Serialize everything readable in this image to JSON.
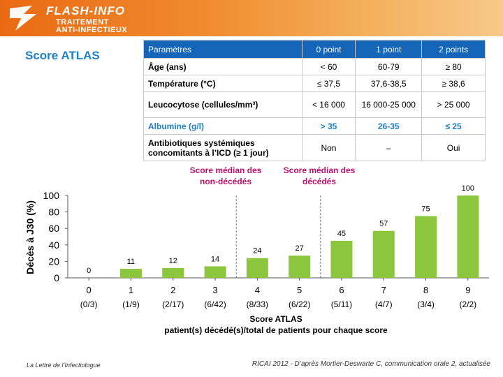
{
  "header": {
    "logo_title": "FLASH-INFO",
    "logo_line1": "TRAITEMENT",
    "logo_line2": "ANTI-INFECTIEUX"
  },
  "page_title": "Score ATLAS",
  "table": {
    "headers": [
      "Paramètres",
      "0 point",
      "1 point",
      "2 points"
    ],
    "rows": [
      {
        "param": "Âge (ans)",
        "v0": "< 60",
        "v1": "60-79",
        "v2": "≥ 80"
      },
      {
        "param": "Température (°C)",
        "v0": "≤ 37,5",
        "v1": "37,6-38,5",
        "v2": "≥ 38,6"
      },
      {
        "param": "Leucocytose (cellules/mm³)",
        "v0": "< 16 000",
        "v1": "16 000-25 000",
        "v2": "> 25 000"
      },
      {
        "param": "Albumine (g/l)",
        "v0": "> 35",
        "v1": "26-35",
        "v2": "≤ 25"
      },
      {
        "param": "Antibiotiques systémiques concomitants à l’ICD (≥ 1 jour)",
        "v0": "Non",
        "v1": "–",
        "v2": "Oui"
      }
    ]
  },
  "medians": {
    "left": "Score médian des non-décédés",
    "right": "Score médian des décédés"
  },
  "chart_data": {
    "type": "bar",
    "categories": [
      "0",
      "1",
      "2",
      "3",
      "4",
      "5",
      "6",
      "7",
      "8",
      "9"
    ],
    "sublabels": [
      "(0/3)",
      "(1/9)",
      "(2/17)",
      "(6/42)",
      "(8/33)",
      "(6/22)",
      "(5/11)",
      "(4/7)",
      "(3/4)",
      "(2/2)"
    ],
    "values": [
      0,
      11,
      12,
      14,
      24,
      27,
      45,
      57,
      75,
      100
    ],
    "ylim": [
      0,
      100
    ],
    "yticks": [
      0,
      20,
      40,
      60,
      80,
      100
    ],
    "ylabel": "Décès à J30 (%)",
    "xlabel": "Score ATLAS",
    "xlabel2": "patient(s) décédé(s)/total de patients pour chaque score",
    "bar_color": "#8cc63f",
    "median_lines_after": [
      3.5,
      5.5
    ]
  },
  "footer": {
    "left": "La Lettre de l’Infectiologue",
    "right": "RICAI 2012 - D’après Mortier-Deswarte C, communication orale 2, actualisée"
  }
}
